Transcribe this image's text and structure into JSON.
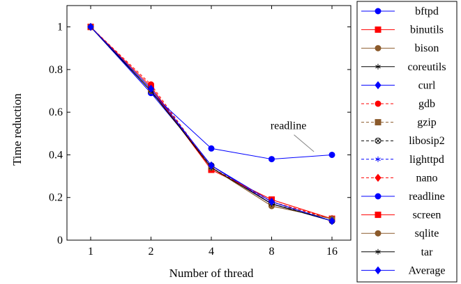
{
  "chart_data": {
    "type": "line",
    "title": "",
    "xlabel": "Number of thread",
    "ylabel": "Time reduction",
    "x": [
      1,
      2,
      4,
      8,
      16
    ],
    "x_scale": "log2",
    "xticks": [
      "1",
      "2",
      "4",
      "8",
      "16"
    ],
    "ylim": [
      0,
      1.1
    ],
    "yticks": [
      "0",
      "0.2",
      "0.4",
      "0.6",
      "0.8",
      "1"
    ],
    "legend_position": "outside-right",
    "annotation": {
      "text": "readline",
      "x": 9.7,
      "y": 0.52,
      "target_x": 13,
      "target_y": 0.415
    },
    "series": [
      {
        "name": "bftpd",
        "color": "#0000ff",
        "marker": "circle",
        "dash": "solid",
        "values": [
          1,
          0.69,
          0.35,
          0.18,
          0.09
        ]
      },
      {
        "name": "binutils",
        "color": "#ff0000",
        "marker": "square",
        "dash": "solid",
        "values": [
          1,
          0.72,
          0.33,
          0.19,
          0.1
        ]
      },
      {
        "name": "bison",
        "color": "#8b5a2b",
        "marker": "circle",
        "dash": "solid",
        "values": [
          1,
          0.7,
          0.34,
          0.16,
          0.1
        ]
      },
      {
        "name": "coreutils",
        "color": "#000000",
        "marker": "star",
        "dash": "solid",
        "values": [
          1,
          0.7,
          0.35,
          0.17,
          0.09
        ]
      },
      {
        "name": "curl",
        "color": "#0000ff",
        "marker": "diamond",
        "dash": "solid",
        "values": [
          1,
          0.7,
          0.35,
          0.17,
          0.09
        ]
      },
      {
        "name": "gdb",
        "color": "#ff0000",
        "marker": "circle",
        "dash": "dashed",
        "values": [
          1,
          0.73,
          0.34,
          0.18,
          0.1
        ]
      },
      {
        "name": "gzip",
        "color": "#8b5a2b",
        "marker": "square",
        "dash": "dashed",
        "values": [
          1,
          0.71,
          0.34,
          0.17,
          0.1
        ]
      },
      {
        "name": "libosip2",
        "color": "#000000",
        "marker": "otimes",
        "dash": "dashed",
        "values": [
          1,
          0.7,
          0.35,
          0.17,
          0.09
        ]
      },
      {
        "name": "lighttpd",
        "color": "#0000ff",
        "marker": "star",
        "dash": "dashed",
        "values": [
          1,
          0.7,
          0.35,
          0.17,
          0.09
        ]
      },
      {
        "name": "nano",
        "color": "#ff0000",
        "marker": "diamond",
        "dash": "dashed",
        "values": [
          1,
          0.72,
          0.34,
          0.18,
          0.1
        ]
      },
      {
        "name": "readline",
        "color": "#0000ff",
        "marker": "circle",
        "dash": "solid",
        "values": [
          1,
          0.69,
          0.43,
          0.38,
          0.4
        ]
      },
      {
        "name": "screen",
        "color": "#ff0000",
        "marker": "square",
        "dash": "solid",
        "values": [
          1,
          0.71,
          0.33,
          0.19,
          0.1
        ]
      },
      {
        "name": "sqlite",
        "color": "#8b5a2b",
        "marker": "circle",
        "dash": "solid",
        "values": [
          1,
          0.7,
          0.34,
          0.16,
          0.1
        ]
      },
      {
        "name": "tar",
        "color": "#000000",
        "marker": "star",
        "dash": "solid",
        "values": [
          1,
          0.7,
          0.34,
          0.17,
          0.09
        ]
      },
      {
        "name": "Average",
        "color": "#0000ff",
        "marker": "diamond",
        "dash": "solid",
        "values": [
          1,
          0.71,
          0.35,
          0.18,
          0.09
        ]
      }
    ]
  }
}
